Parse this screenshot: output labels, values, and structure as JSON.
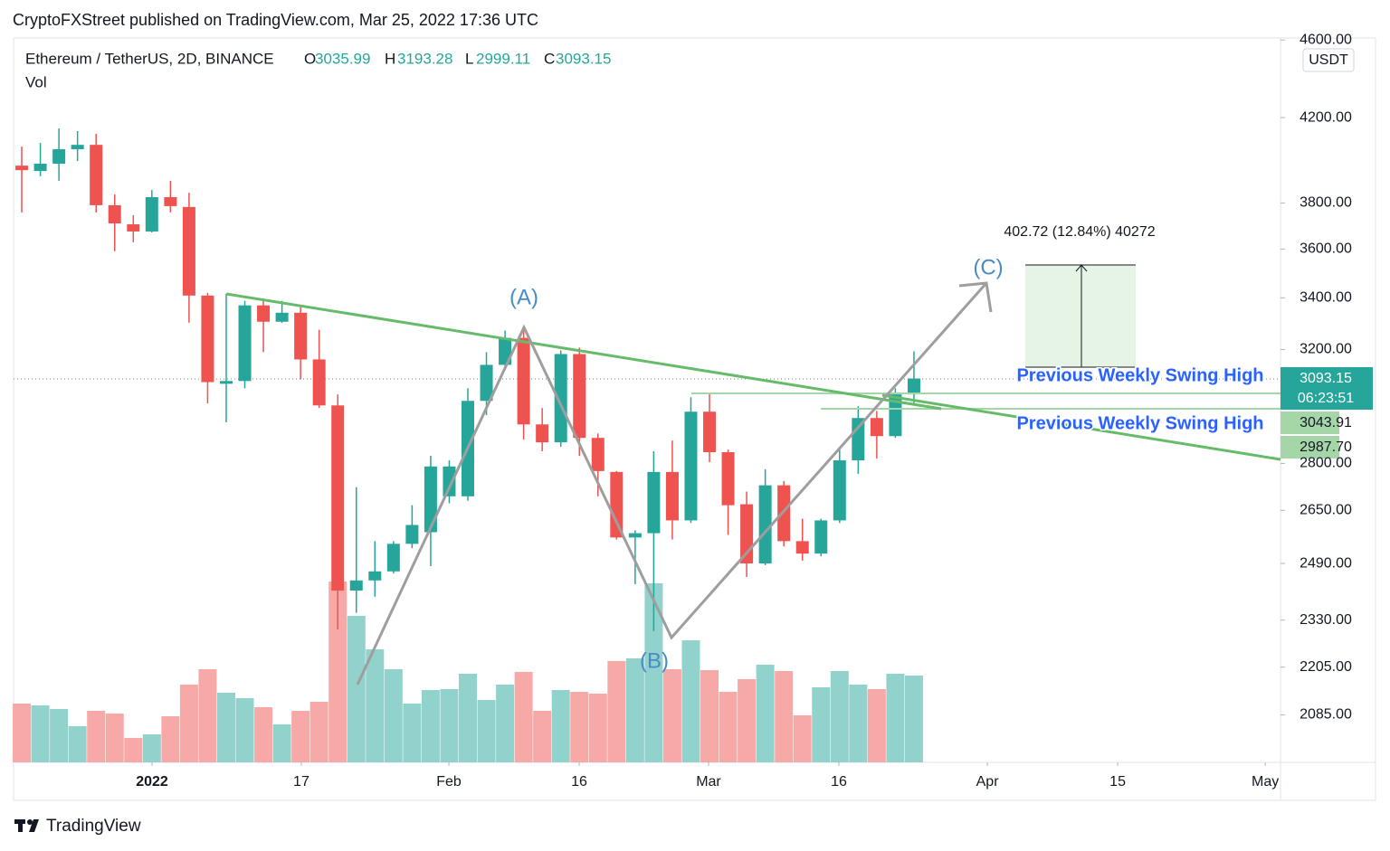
{
  "published": "CryptoFXStreet published on TradingView.com, Mar 25, 2022 17:36 UTC",
  "footer": "TradingView",
  "chart_data": {
    "type": "candlestick",
    "title": "Ethereum / TetherUS, 2D, BINANCE",
    "subtitle": "Vol",
    "ohlc_keys": [
      "O",
      "H",
      "L",
      "C"
    ],
    "currency": "USDT",
    "countdown": "06:23:51",
    "levels": [
      "3043.91",
      "2987.70"
    ],
    "annotations": [
      "(A)",
      "(B)",
      "(C)",
      "402.72 (12.84%) 40272",
      "Previous Weekly Swing High",
      "Previous Weekly Swing High"
    ],
    "log_scale": true,
    "grid": false,
    "up_color": "#26a69a",
    "down_color": "#ef5350",
    "volume_up_color": "#92d2cc",
    "volume_down_color": "#f7a9a7",
    "x": [
      0,
      1,
      2,
      3,
      4,
      5,
      6,
      7,
      8,
      9,
      10,
      11,
      12,
      13,
      14,
      15,
      16,
      17,
      18,
      19,
      20,
      21,
      22,
      23,
      24,
      25,
      26,
      27,
      28,
      29,
      30,
      31,
      32,
      33,
      34,
      35,
      36,
      37,
      38,
      39,
      40,
      41,
      42,
      43,
      44,
      45,
      46,
      47,
      48
    ],
    "open": [
      3970,
      3945,
      3979,
      4047,
      4068,
      3790,
      3706,
      3675,
      3826,
      3782,
      3409,
      3074,
      3084,
      3370,
      3306,
      3341,
      3163,
      2997,
      2412,
      2441,
      2467,
      2548,
      2583,
      2694,
      2694,
      3013,
      3143,
      3244,
      2931,
      2870,
      3183,
      2885,
      2772,
      2567,
      2580,
      2772,
      2619,
      2975,
      2837,
      2669,
      2490,
      2729,
      2556,
      2519,
      2619,
      2810,
      2953,
      2891,
      3035.99
    ],
    "high": [
      4060,
      4077,
      4147,
      4134,
      4121,
      3838,
      3746,
      3858,
      3900,
      3846,
      3420,
      3416,
      3388,
      3398,
      3388,
      3363,
      3275,
      3036,
      2723,
      2556,
      2556,
      2666,
      2825,
      2810,
      3058,
      3190,
      3272,
      3272,
      2988,
      3197,
      3207,
      2900,
      2775,
      2589,
      2840,
      2876,
      3026,
      3042,
      2846,
      2709,
      2781,
      2743,
      2624,
      2624,
      2852,
      2994,
      2978,
      3058,
      3193.28
    ],
    "low": [
      3758,
      3921,
      3900,
      3991,
      3758,
      3591,
      3629,
      3671,
      3758,
      3302,
      3004,
      2938,
      3058,
      3190,
      3302,
      3090,
      2988,
      2305,
      2350,
      2395,
      2461,
      2535,
      2482,
      2672,
      2680,
      2963,
      3123,
      2879,
      2840,
      2855,
      2825,
      2694,
      2561,
      2430,
      2300,
      2561,
      2611,
      2804,
      2575,
      2451,
      2485,
      2540,
      2498,
      2511,
      2611,
      2766,
      2816,
      2885,
      2999.11
    ],
    "close": [
      3949,
      3979,
      4047,
      4068,
      3790,
      3710,
      3675,
      3826,
      3786,
      3409,
      3080,
      3084,
      3370,
      3306,
      3341,
      3163,
      2997,
      2412,
      2441,
      2467,
      2548,
      2605,
      2790,
      2790,
      3013,
      3143,
      3244,
      2931,
      2870,
      3183,
      2885,
      2775,
      2567,
      2580,
      2772,
      2619,
      2975,
      2837,
      2666,
      2490,
      2729,
      2556,
      2519,
      2619,
      2810,
      2953,
      2891,
      3036,
      3093.15
    ],
    "volume": [
      65,
      63,
      59,
      40,
      57,
      54,
      27,
      31,
      51,
      86,
      103,
      77,
      71,
      61,
      42,
      57,
      67,
      200,
      162,
      125,
      103,
      65,
      80,
      81,
      98,
      69,
      86,
      100,
      57,
      80,
      78,
      76,
      112,
      115,
      198,
      103,
      135,
      102,
      78,
      92,
      108,
      101,
      52,
      83,
      101,
      86,
      81,
      98,
      96
    ],
    "xlim": [
      -0.44,
      67.72
    ],
    "xticks": [
      {
        "value": 7.01,
        "label": "2022"
      },
      {
        "value": 15.04,
        "label": "17"
      },
      {
        "value": 22.98,
        "label": "Feb"
      },
      {
        "value": 29.99,
        "label": "16"
      },
      {
        "value": 36.95,
        "label": "Mar"
      },
      {
        "value": 43.96,
        "label": "16"
      },
      {
        "value": 51.95,
        "label": "Apr"
      },
      {
        "value": 58.96,
        "label": "15"
      },
      {
        "value": 66.9,
        "label": "May"
      }
    ],
    "ylim": [
      1972,
      4611
    ],
    "yticks": [
      {
        "value": 4600,
        "label": "4600.00"
      },
      {
        "value": 4200,
        "label": "4200.00"
      },
      {
        "value": 3800,
        "label": "3800.00"
      },
      {
        "value": 3600,
        "label": "3600.00"
      },
      {
        "value": 3400,
        "label": "3400.00"
      },
      {
        "value": 3200,
        "label": "3200.00"
      },
      {
        "value": 2800,
        "label": "2800.00"
      },
      {
        "value": 2650,
        "label": "2650.00"
      },
      {
        "value": 2490,
        "label": "2490.00"
      },
      {
        "value": 2330,
        "label": "2330.00"
      },
      {
        "value": 2205,
        "label": "2205.00"
      },
      {
        "value": 2085,
        "label": "2085.00"
      }
    ]
  }
}
